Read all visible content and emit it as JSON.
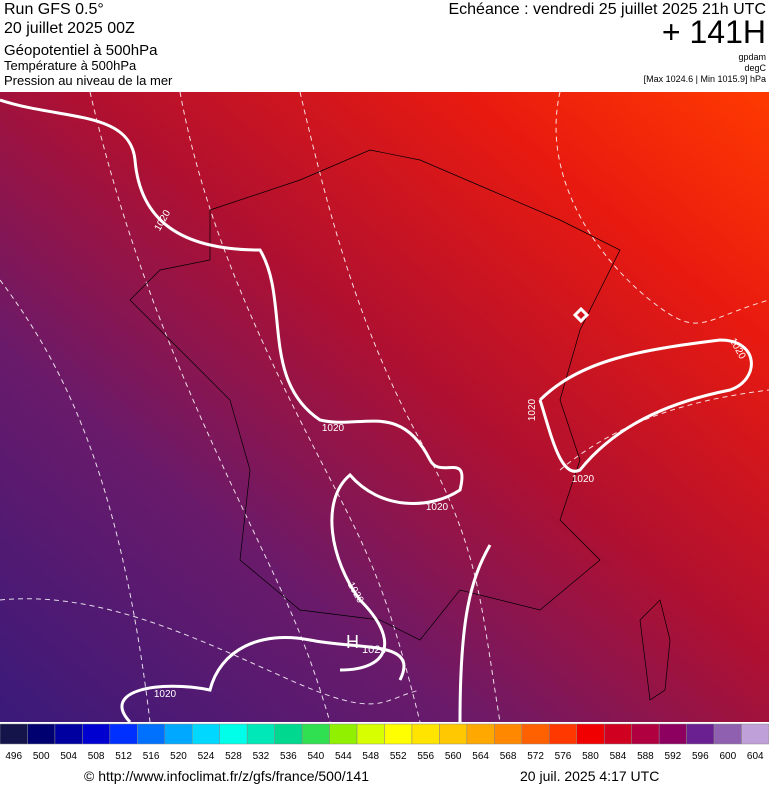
{
  "header": {
    "run": "Run GFS 0.5°",
    "date": "20 juillet 2025 00Z",
    "layers": [
      "Géopotentiel à 500hPa",
      "Température à 500hPa",
      "Pression au niveau de la mer"
    ],
    "echeance": "Echéance : vendredi 25 juillet 2025 21h UTC",
    "lead": "+ 141H",
    "units": [
      "gpdam",
      "degC",
      "[Max 1024.6 | Min 1015.9] hPa"
    ]
  },
  "map": {
    "isobar_labels": [
      "1020",
      "1020",
      "1020",
      "1020",
      "1020",
      "1020",
      "1020",
      "1020"
    ],
    "high": {
      "letter": "H",
      "value": "1024"
    }
  },
  "scale": {
    "ticks": [
      496,
      500,
      504,
      508,
      512,
      516,
      520,
      524,
      528,
      532,
      536,
      540,
      544,
      548,
      552,
      556,
      560,
      564,
      568,
      572,
      576,
      580,
      584,
      588,
      592,
      596,
      600,
      604
    ],
    "colors": [
      "#14144a",
      "#000070",
      "#0000a0",
      "#0000d0",
      "#0030ff",
      "#0070ff",
      "#00a8ff",
      "#00d8ff",
      "#00ffe8",
      "#00e8b8",
      "#00d890",
      "#30e050",
      "#90f000",
      "#d8ff00",
      "#ffff00",
      "#ffe400",
      "#ffc800",
      "#ffa800",
      "#ff8800",
      "#ff6000",
      "#ff3800",
      "#f00000",
      "#d00020",
      "#b00040",
      "#8e0060",
      "#6a2090",
      "#9060b0",
      "#c0a0d8"
    ]
  },
  "footer": {
    "source": "© http://www.infoclimat.fr/z/gfs/france/500/141",
    "timestamp": "20 juil. 2025  4:17 UTC"
  }
}
